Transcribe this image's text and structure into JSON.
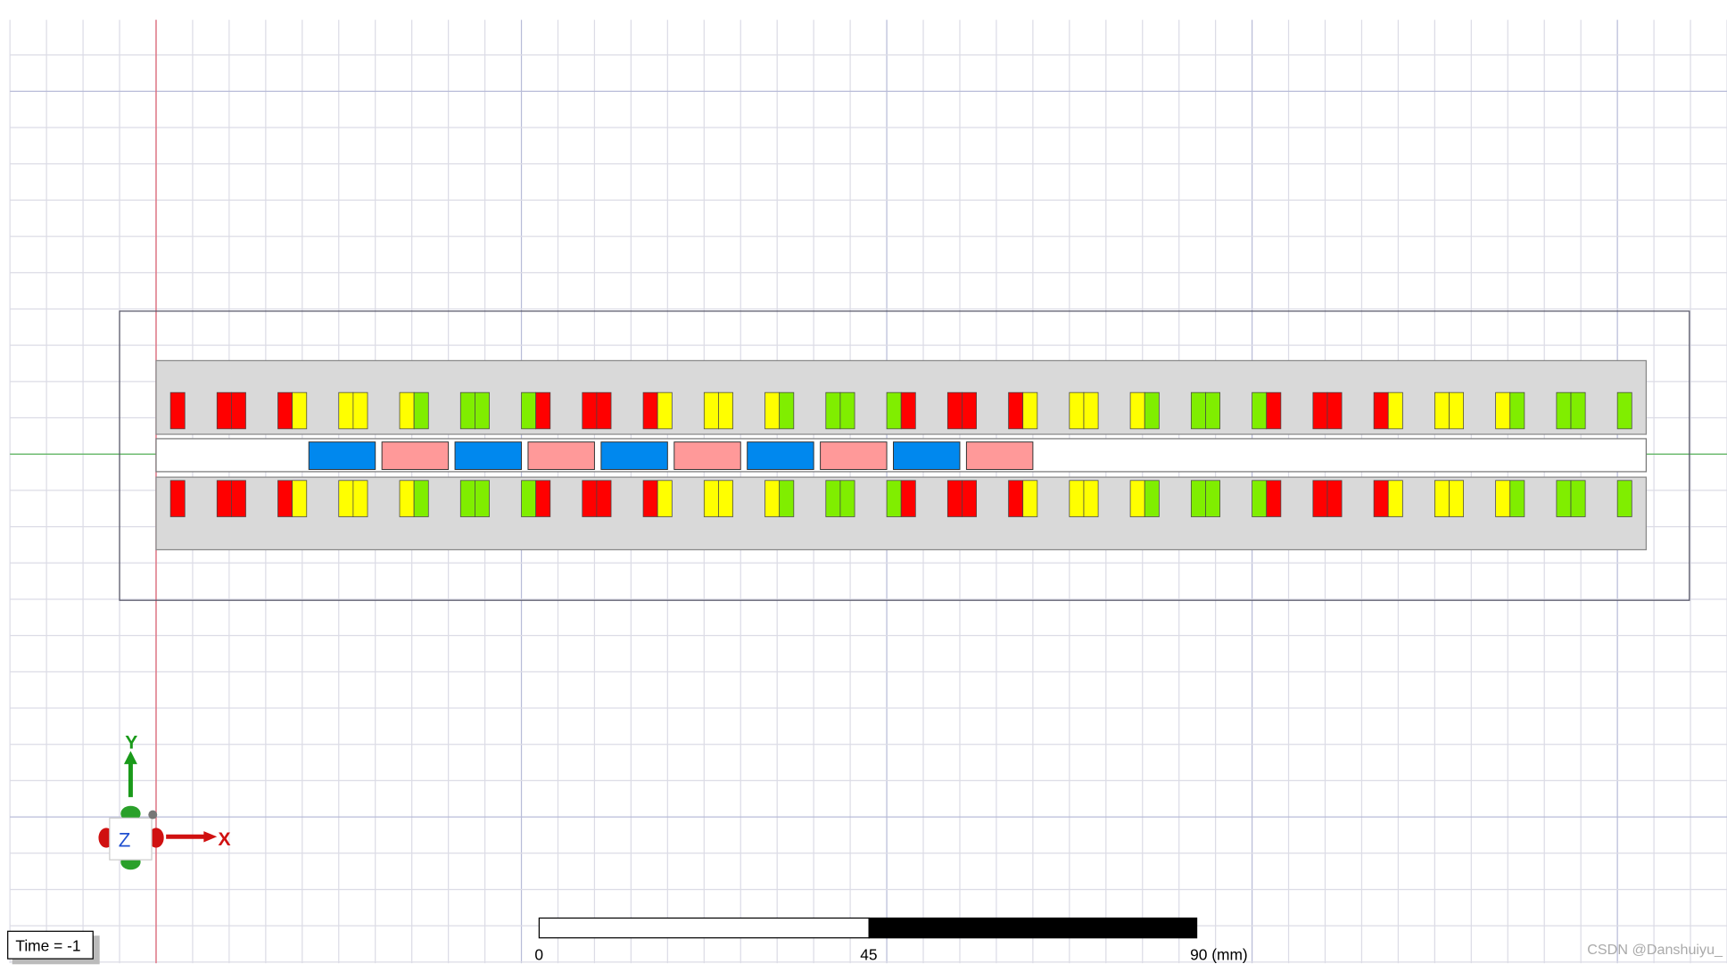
{
  "viewport": {
    "axis_labels": {
      "y": "Y",
      "x": "X",
      "z": "Z"
    },
    "time_label": "Time = -1",
    "scale_bar": {
      "labels": [
        "0",
        "45",
        "90 (mm)"
      ]
    },
    "watermark": "CSDN @Danshuiyu_"
  }
}
